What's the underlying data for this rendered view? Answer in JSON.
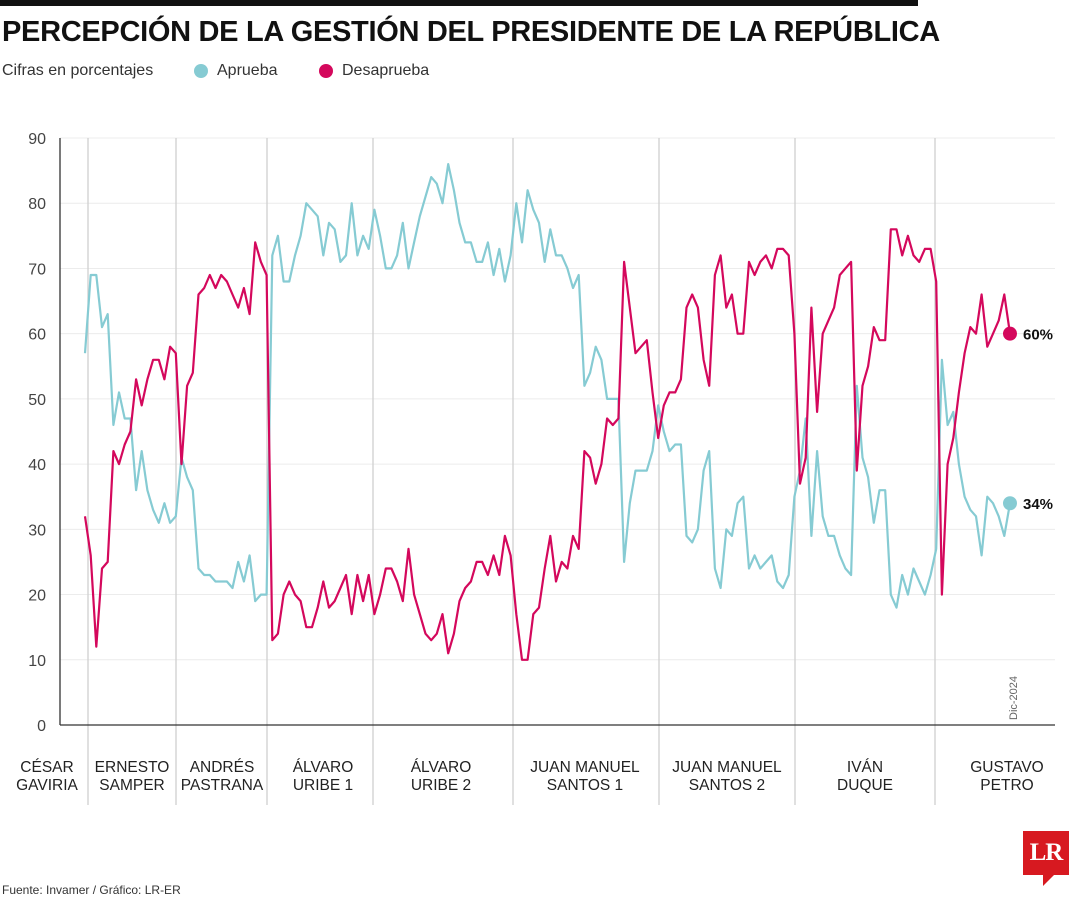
{
  "header": {
    "title": "PERCEPCIÓN DE LA GESTIÓN DEL PRESIDENTE DE LA REPÚBLICA",
    "subtitle": "Cifras en porcentajes"
  },
  "footer": {
    "source": "Fuente: Invamer / Gráfico: LR-ER"
  },
  "logo": {
    "text": "LR",
    "color": "#d71920"
  },
  "chart_data": {
    "type": "line",
    "title": "PERCEPCIÓN DE LA GESTIÓN DEL PRESIDENTE DE LA REPÚBLICA",
    "subtitle": "Cifras en porcentajes",
    "ylim": [
      0,
      90
    ],
    "yticks": [
      "0",
      "10",
      "20",
      "30",
      "40",
      "50",
      "60",
      "70",
      "80",
      "90"
    ],
    "grid": true,
    "legend_position": "top-left",
    "annotation": "Dic-2024",
    "periods": [
      "CÉSAR GAVIRIA",
      "ERNESTO SAMPER",
      "ANDRÉS PASTRANA",
      "ÁLVARO URIBE 1",
      "ÁLVARO URIBE 2",
      "JUAN MANUEL SANTOS 1",
      "JUAN MANUEL SANTOS 2",
      "IVÁN DUQUE",
      "GUSTAVO PETRO"
    ],
    "period_lines": [
      [
        "CÉSAR",
        "GAVIRIA"
      ],
      [
        "ERNESTO",
        "SAMPER"
      ],
      [
        "ANDRÉS",
        "PASTRANA"
      ],
      [
        "ÁLVARO",
        "URIBE 1"
      ],
      [
        "ÁLVARO",
        "URIBE 2"
      ],
      [
        "JUAN MANUEL",
        "SANTOS 1"
      ],
      [
        "JUAN MANUEL",
        "SANTOS 2"
      ],
      [
        "IVÁN",
        "DUQUE"
      ],
      [
        "GUSTAVO",
        "PETRO"
      ]
    ],
    "series": [
      {
        "name": "Aprueba",
        "color": "#86cbd3",
        "end_label": "34%",
        "values": [
          57,
          69,
          69,
          61,
          63,
          46,
          51,
          47,
          47,
          36,
          42,
          36,
          33,
          31,
          34,
          31,
          32,
          41,
          38,
          36,
          24,
          23,
          23,
          22,
          22,
          22,
          21,
          25,
          22,
          26,
          19,
          20,
          20,
          72,
          75,
          68,
          68,
          72,
          75,
          80,
          79,
          78,
          72,
          77,
          76,
          71,
          72,
          80,
          72,
          75,
          73,
          79,
          75,
          70,
          70,
          72,
          77,
          70,
          74,
          78,
          81,
          84,
          83,
          80,
          86,
          82,
          77,
          74,
          74,
          71,
          71,
          74,
          69,
          73,
          68,
          72,
          80,
          74,
          82,
          79,
          77,
          71,
          76,
          72,
          72,
          70,
          67,
          69,
          52,
          54,
          58,
          56,
          50,
          50,
          50,
          25,
          34,
          39,
          39,
          39,
          42,
          49,
          45,
          42,
          43,
          43,
          29,
          28,
          30,
          39,
          42,
          24,
          21,
          30,
          29,
          34,
          35,
          24,
          26,
          24,
          25,
          26,
          22,
          21,
          23,
          35,
          39,
          47,
          29,
          42,
          32,
          29,
          29,
          26,
          24,
          23,
          52,
          41,
          38,
          31,
          36,
          36,
          20,
          18,
          23,
          20,
          24,
          22,
          20,
          23,
          27,
          56,
          46,
          48,
          40,
          35,
          33,
          32,
          26,
          35,
          34,
          32,
          29,
          34
        ]
      },
      {
        "name": "Desaprueba",
        "color": "#d4085c",
        "end_label": "60%",
        "values": [
          32,
          26,
          12,
          24,
          25,
          42,
          40,
          43,
          45,
          53,
          49,
          53,
          56,
          56,
          53,
          58,
          57,
          40,
          52,
          54,
          66,
          67,
          69,
          67,
          69,
          68,
          66,
          64,
          67,
          63,
          74,
          71,
          69,
          13,
          14,
          20,
          22,
          20,
          19,
          15,
          15,
          18,
          22,
          18,
          19,
          21,
          23,
          17,
          23,
          19,
          23,
          17,
          20,
          24,
          24,
          22,
          19,
          27,
          20,
          17,
          14,
          13,
          14,
          17,
          11,
          14,
          19,
          21,
          22,
          25,
          25,
          23,
          26,
          23,
          29,
          26,
          17,
          10,
          10,
          17,
          18,
          24,
          29,
          22,
          25,
          24,
          29,
          27,
          42,
          41,
          37,
          40,
          47,
          46,
          47,
          71,
          64,
          57,
          58,
          59,
          51,
          44,
          49,
          51,
          51,
          53,
          64,
          66,
          64,
          56,
          52,
          69,
          72,
          64,
          66,
          60,
          60,
          71,
          69,
          71,
          72,
          70,
          73,
          73,
          72,
          60,
          37,
          41,
          64,
          48,
          60,
          62,
          64,
          69,
          70,
          71,
          39,
          52,
          55,
          61,
          59,
          59,
          76,
          76,
          72,
          75,
          72,
          71,
          73,
          73,
          68,
          20,
          40,
          44,
          51,
          57,
          61,
          60,
          66,
          58,
          60,
          62,
          66,
          60
        ]
      }
    ]
  }
}
